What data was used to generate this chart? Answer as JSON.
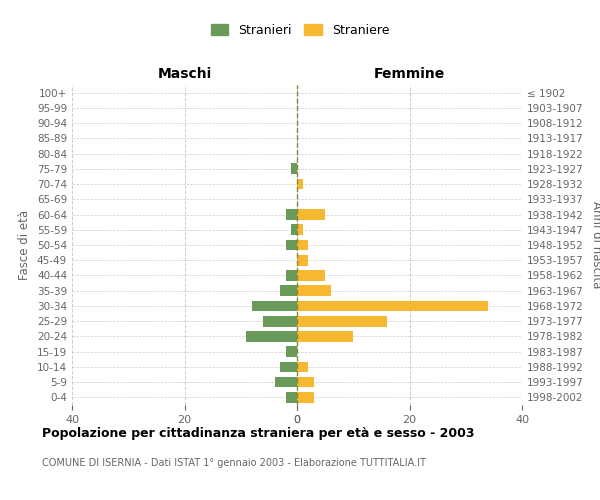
{
  "age_groups": [
    "100+",
    "95-99",
    "90-94",
    "85-89",
    "80-84",
    "75-79",
    "70-74",
    "65-69",
    "60-64",
    "55-59",
    "50-54",
    "45-49",
    "40-44",
    "35-39",
    "30-34",
    "25-29",
    "20-24",
    "15-19",
    "10-14",
    "5-9",
    "0-4"
  ],
  "birth_years": [
    "≤ 1902",
    "1903-1907",
    "1908-1912",
    "1913-1917",
    "1918-1922",
    "1923-1927",
    "1928-1932",
    "1933-1937",
    "1938-1942",
    "1943-1947",
    "1948-1952",
    "1953-1957",
    "1958-1962",
    "1963-1967",
    "1968-1972",
    "1973-1977",
    "1978-1982",
    "1983-1987",
    "1988-1992",
    "1993-1997",
    "1998-2002"
  ],
  "maschi": [
    0,
    0,
    0,
    0,
    0,
    1,
    0,
    0,
    2,
    1,
    2,
    0,
    2,
    3,
    8,
    6,
    9,
    2,
    3,
    4,
    2
  ],
  "femmine": [
    0,
    0,
    0,
    0,
    0,
    0,
    1,
    0,
    5,
    1,
    2,
    2,
    5,
    6,
    34,
    16,
    10,
    0,
    2,
    3,
    3
  ],
  "color_maschi": "#6a9a5a",
  "color_femmine": "#f5b830",
  "xlim": 40,
  "title": "Popolazione per cittadinanza straniera per età e sesso - 2003",
  "subtitle": "COMUNE DI ISERNIA - Dati ISTAT 1° gennaio 2003 - Elaborazione TUTTITALIA.IT",
  "ylabel_left": "Fasce di età",
  "ylabel_right": "Anni di nascita",
  "header_left": "Maschi",
  "header_right": "Femmine",
  "legend_maschi": "Stranieri",
  "legend_femmine": "Straniere",
  "background_color": "#ffffff",
  "grid_color": "#cccccc",
  "text_color": "#666666",
  "title_color": "#000000"
}
